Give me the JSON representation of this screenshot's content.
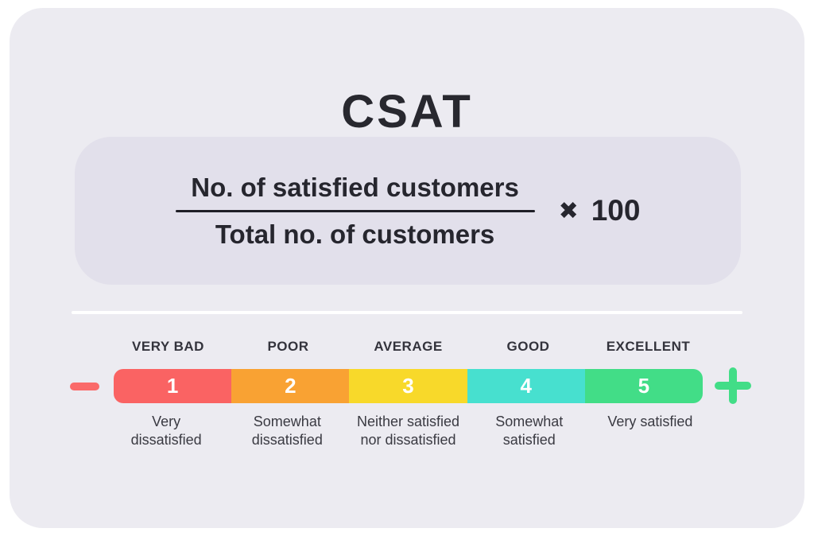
{
  "page": {
    "title": "CSAT"
  },
  "formula": {
    "numerator": "No. of satisfied customers",
    "denominator": "Total no. of customers",
    "multiply_symbol": "✖",
    "multiplier": "100"
  },
  "scale": {
    "minus_color": "#FA6A6A",
    "plus_color": "#42DD87",
    "items": [
      {
        "label": "VERY BAD",
        "value": "1",
        "description": "Very\ndissatisfied",
        "color": "#FA6363"
      },
      {
        "label": "POOR",
        "value": "2",
        "description": "Somewhat\ndissatisfied",
        "color": "#F9A233"
      },
      {
        "label": "AVERAGE",
        "value": "3",
        "description": "Neither satisfied\nnor dissatisfied",
        "color": "#F8D92A"
      },
      {
        "label": "GOOD",
        "value": "4",
        "description": "Somewhat\nsatisfied",
        "color": "#47E0CF"
      },
      {
        "label": "EXCELLENT",
        "value": "5",
        "description": "Very satisfied",
        "color": "#42DD87"
      }
    ]
  },
  "colors": {
    "page_background": "#FFFFFF",
    "card_background": "#ECEBF1",
    "formula_box_background": "#E2E0EB",
    "text_dark": "#28282F",
    "divider": "#FFFFFF"
  }
}
